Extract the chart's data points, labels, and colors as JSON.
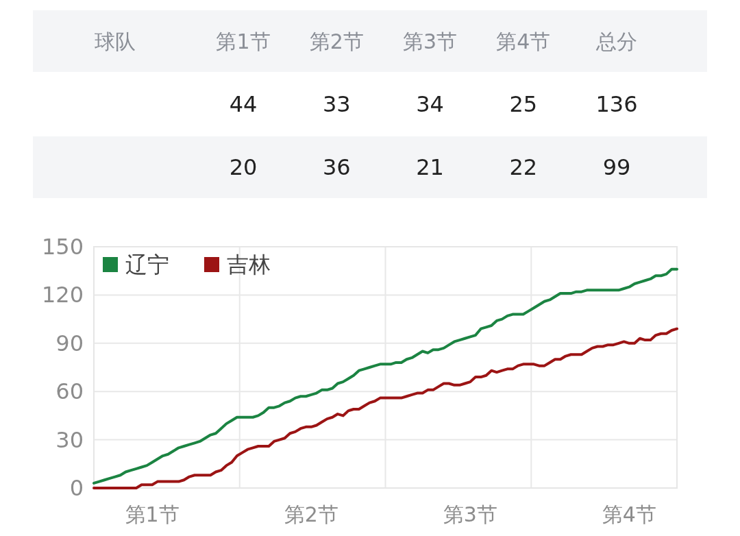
{
  "chart_data": [
    {
      "type": "other",
      "legend_title": "球队",
      "categories": [
        "第1节",
        "第2节",
        "第3节",
        "第4节",
        "总分"
      ],
      "data_labels": true,
      "series": [
        {
          "values": [
            44,
            33,
            34,
            25,
            136
          ]
        },
        {
          "values": [
            20,
            36,
            21,
            22,
            99
          ]
        }
      ]
    },
    {
      "type": "line",
      "ylim": [
        0,
        150
      ],
      "yticks": [
        0,
        30,
        60,
        90,
        120,
        150
      ],
      "grid": true,
      "legend": "top left",
      "categories": [
        null,
        null,
        null,
        null,
        null,
        null,
        null,
        null,
        null,
        null,
        null,
        "第1节",
        null,
        null,
        null,
        null,
        null,
        null,
        null,
        null,
        null,
        null,
        null,
        null,
        null,
        null,
        null,
        null,
        null,
        null,
        null,
        null,
        null,
        null,
        null,
        null,
        null,
        null,
        null,
        null,
        null,
        "第2节",
        null,
        null,
        null,
        null,
        null,
        null,
        null,
        null,
        null,
        null,
        null,
        null,
        null,
        null,
        null,
        null,
        null,
        null,
        null,
        null,
        null,
        null,
        null,
        null,
        null,
        null,
        null,
        null,
        null,
        "第3节",
        null,
        null,
        null,
        null,
        null,
        null,
        null,
        null,
        null,
        null,
        null,
        null,
        null,
        null,
        null,
        null,
        null,
        null,
        null,
        null,
        null,
        null,
        null,
        null,
        null,
        null,
        null,
        null,
        null,
        "第4节",
        null,
        null,
        null,
        null,
        null,
        null,
        null,
        null,
        null
      ],
      "series": [
        {
          "name": "辽宁",
          "color": "#1b8442",
          "values": [
            3,
            4,
            5,
            6,
            7,
            8,
            10,
            11,
            12,
            13,
            14,
            16,
            18,
            20,
            21,
            23,
            25,
            26,
            27,
            28,
            29,
            31,
            33,
            34,
            37,
            40,
            42,
            44,
            44,
            44,
            44,
            45,
            47,
            50,
            50,
            51,
            53,
            54,
            56,
            57,
            57,
            58,
            59,
            61,
            61,
            62,
            65,
            66,
            68,
            70,
            73,
            74,
            75,
            76,
            77,
            77,
            77,
            78,
            78,
            80,
            81,
            83,
            85,
            84,
            86,
            86,
            87,
            89,
            91,
            92,
            93,
            94,
            95,
            99,
            100,
            101,
            104,
            105,
            107,
            108,
            108,
            108,
            110,
            112,
            114,
            116,
            117,
            119,
            121,
            121,
            121,
            122,
            122,
            123,
            123,
            123,
            123,
            123,
            123,
            123,
            124,
            125,
            127,
            128,
            129,
            130,
            132,
            132,
            133,
            136,
            136
          ]
        },
        {
          "name": "吉林",
          "color": "#9c1414",
          "values": [
            0,
            0,
            0,
            0,
            0,
            0,
            0,
            0,
            0,
            2,
            2,
            2,
            4,
            4,
            4,
            4,
            4,
            5,
            7,
            8,
            8,
            8,
            8,
            10,
            11,
            14,
            16,
            20,
            22,
            24,
            25,
            26,
            26,
            26,
            29,
            30,
            31,
            34,
            35,
            37,
            38,
            38,
            39,
            41,
            43,
            44,
            46,
            45,
            48,
            49,
            49,
            51,
            53,
            54,
            56,
            56,
            56,
            56,
            56,
            57,
            58,
            59,
            59,
            61,
            61,
            63,
            65,
            65,
            64,
            64,
            65,
            66,
            69,
            69,
            70,
            73,
            72,
            73,
            74,
            74,
            76,
            77,
            77,
            77,
            76,
            76,
            78,
            80,
            80,
            82,
            83,
            83,
            83,
            85,
            87,
            88,
            88,
            89,
            89,
            90,
            91,
            90,
            90,
            93,
            92,
            92,
            95,
            96,
            96,
            98,
            99
          ]
        }
      ]
    }
  ]
}
